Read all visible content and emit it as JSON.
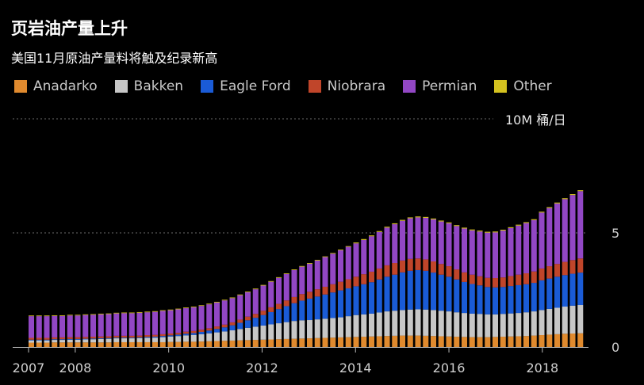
{
  "chart_data": {
    "type": "bar",
    "stacked": true,
    "title": "页岩油产量上升",
    "subtitle": "美国11月原油产量料将触及纪录新高",
    "unit_label": "10M  桶/日",
    "y_ticks": [
      {
        "value": 0,
        "label": "0"
      },
      {
        "value": 5,
        "label": "5"
      }
    ],
    "x_ticks": [
      {
        "value": 2007.0,
        "label": "2007"
      },
      {
        "value": 2008.0,
        "label": "2008"
      },
      {
        "value": 2010.0,
        "label": "2010"
      },
      {
        "value": 2012.0,
        "label": "2012"
      },
      {
        "value": 2014.0,
        "label": "2014"
      },
      {
        "value": 2016.0,
        "label": "2016"
      },
      {
        "value": 2018.0,
        "label": "2018"
      }
    ],
    "ylim": [
      0,
      10
    ],
    "xlim": [
      2007.0,
      2018.92
    ],
    "categories": [
      "2007-01",
      "2007-03",
      "2007-05",
      "2007-07",
      "2007-09",
      "2007-11",
      "2008-01",
      "2008-03",
      "2008-05",
      "2008-07",
      "2008-09",
      "2008-11",
      "2009-01",
      "2009-03",
      "2009-05",
      "2009-07",
      "2009-09",
      "2009-11",
      "2010-01",
      "2010-03",
      "2010-05",
      "2010-07",
      "2010-09",
      "2010-11",
      "2011-01",
      "2011-03",
      "2011-05",
      "2011-07",
      "2011-09",
      "2011-11",
      "2012-01",
      "2012-03",
      "2012-05",
      "2012-07",
      "2012-09",
      "2012-11",
      "2013-01",
      "2013-03",
      "2013-05",
      "2013-07",
      "2013-09",
      "2013-11",
      "2014-01",
      "2014-03",
      "2014-05",
      "2014-07",
      "2014-09",
      "2014-11",
      "2015-01",
      "2015-03",
      "2015-05",
      "2015-07",
      "2015-09",
      "2015-11",
      "2016-01",
      "2016-03",
      "2016-05",
      "2016-07",
      "2016-09",
      "2016-11",
      "2017-01",
      "2017-03",
      "2017-05",
      "2017-07",
      "2017-09",
      "2017-11",
      "2018-01",
      "2018-03",
      "2018-05",
      "2018-07",
      "2018-09",
      "2018-11"
    ],
    "series": [
      {
        "name": "Anadarko",
        "color": "#e08a2e",
        "values": [
          0.19,
          0.19,
          0.19,
          0.2,
          0.2,
          0.2,
          0.2,
          0.2,
          0.2,
          0.2,
          0.2,
          0.21,
          0.21,
          0.21,
          0.21,
          0.21,
          0.21,
          0.21,
          0.22,
          0.22,
          0.23,
          0.23,
          0.24,
          0.25,
          0.26,
          0.27,
          0.28,
          0.29,
          0.3,
          0.31,
          0.32,
          0.33,
          0.34,
          0.35,
          0.36,
          0.37,
          0.38,
          0.39,
          0.4,
          0.41,
          0.42,
          0.43,
          0.44,
          0.45,
          0.46,
          0.47,
          0.48,
          0.49,
          0.5,
          0.5,
          0.5,
          0.49,
          0.48,
          0.47,
          0.46,
          0.45,
          0.44,
          0.43,
          0.43,
          0.43,
          0.44,
          0.45,
          0.46,
          0.47,
          0.48,
          0.5,
          0.52,
          0.54,
          0.56,
          0.58,
          0.59,
          0.6
        ]
      },
      {
        "name": "Bakken",
        "color": "#c7c7c7",
        "values": [
          0.1,
          0.1,
          0.1,
          0.11,
          0.11,
          0.12,
          0.12,
          0.13,
          0.14,
          0.15,
          0.16,
          0.17,
          0.17,
          0.17,
          0.18,
          0.19,
          0.2,
          0.22,
          0.24,
          0.26,
          0.28,
          0.3,
          0.32,
          0.35,
          0.38,
          0.41,
          0.45,
          0.5,
          0.54,
          0.58,
          0.62,
          0.66,
          0.7,
          0.74,
          0.78,
          0.8,
          0.8,
          0.82,
          0.84,
          0.86,
          0.88,
          0.92,
          0.96,
          0.98,
          1.0,
          1.04,
          1.08,
          1.1,
          1.12,
          1.14,
          1.15,
          1.15,
          1.14,
          1.12,
          1.1,
          1.07,
          1.05,
          1.03,
          1.02,
          1.0,
          0.99,
          1.0,
          1.01,
          1.02,
          1.04,
          1.06,
          1.1,
          1.13,
          1.16,
          1.19,
          1.22,
          1.24
        ]
      },
      {
        "name": "Eagle Ford",
        "color": "#1a5bd6",
        "values": [
          0.03,
          0.03,
          0.03,
          0.03,
          0.03,
          0.03,
          0.03,
          0.03,
          0.03,
          0.03,
          0.03,
          0.03,
          0.03,
          0.03,
          0.03,
          0.04,
          0.04,
          0.05,
          0.05,
          0.06,
          0.07,
          0.08,
          0.1,
          0.12,
          0.15,
          0.18,
          0.22,
          0.27,
          0.33,
          0.39,
          0.46,
          0.54,
          0.62,
          0.7,
          0.78,
          0.86,
          0.94,
          1.0,
          1.06,
          1.12,
          1.18,
          1.22,
          1.26,
          1.32,
          1.38,
          1.45,
          1.52,
          1.58,
          1.65,
          1.7,
          1.72,
          1.7,
          1.64,
          1.58,
          1.52,
          1.44,
          1.36,
          1.3,
          1.25,
          1.2,
          1.18,
          1.18,
          1.2,
          1.22,
          1.23,
          1.25,
          1.3,
          1.33,
          1.36,
          1.38,
          1.4,
          1.42
        ]
      },
      {
        "name": "Niobrara",
        "color": "#c0452a",
        "values": [
          0.08,
          0.08,
          0.08,
          0.08,
          0.08,
          0.08,
          0.08,
          0.08,
          0.08,
          0.08,
          0.08,
          0.08,
          0.08,
          0.08,
          0.08,
          0.08,
          0.08,
          0.08,
          0.08,
          0.08,
          0.09,
          0.09,
          0.1,
          0.1,
          0.11,
          0.12,
          0.13,
          0.14,
          0.16,
          0.17,
          0.19,
          0.21,
          0.23,
          0.25,
          0.27,
          0.29,
          0.3,
          0.32,
          0.34,
          0.36,
          0.38,
          0.4,
          0.42,
          0.44,
          0.46,
          0.48,
          0.5,
          0.51,
          0.52,
          0.52,
          0.51,
          0.5,
          0.49,
          0.47,
          0.46,
          0.44,
          0.42,
          0.41,
          0.4,
          0.4,
          0.41,
          0.42,
          0.44,
          0.46,
          0.48,
          0.5,
          0.52,
          0.54,
          0.56,
          0.58,
          0.6,
          0.62
        ]
      },
      {
        "name": "Permian",
        "color": "#9247c4",
        "values": [
          0.95,
          0.95,
          0.95,
          0.94,
          0.94,
          0.95,
          0.95,
          0.96,
          0.96,
          0.97,
          0.97,
          0.98,
          0.99,
          0.99,
          1.0,
          1.0,
          1.01,
          1.02,
          1.02,
          1.03,
          1.03,
          1.04,
          1.04,
          1.05,
          1.05,
          1.06,
          1.06,
          1.07,
          1.07,
          1.08,
          1.1,
          1.12,
          1.14,
          1.16,
          1.18,
          1.2,
          1.23,
          1.26,
          1.3,
          1.34,
          1.38,
          1.42,
          1.46,
          1.5,
          1.55,
          1.6,
          1.65,
          1.7,
          1.74,
          1.78,
          1.8,
          1.82,
          1.84,
          1.86,
          1.88,
          1.9,
          1.92,
          1.94,
          1.96,
          1.98,
          2.0,
          2.05,
          2.1,
          2.15,
          2.2,
          2.25,
          2.45,
          2.55,
          2.65,
          2.75,
          2.85,
          2.95
        ]
      },
      {
        "name": "Other",
        "color": "#d4c21f",
        "values": [
          0.03,
          0.03,
          0.03,
          0.03,
          0.03,
          0.03,
          0.03,
          0.03,
          0.03,
          0.03,
          0.03,
          0.03,
          0.03,
          0.03,
          0.03,
          0.03,
          0.03,
          0.03,
          0.03,
          0.03,
          0.03,
          0.03,
          0.03,
          0.03,
          0.03,
          0.03,
          0.03,
          0.03,
          0.03,
          0.03,
          0.03,
          0.03,
          0.03,
          0.03,
          0.03,
          0.03,
          0.03,
          0.03,
          0.03,
          0.03,
          0.03,
          0.03,
          0.04,
          0.04,
          0.04,
          0.04,
          0.04,
          0.04,
          0.04,
          0.04,
          0.04,
          0.04,
          0.04,
          0.04,
          0.04,
          0.04,
          0.04,
          0.04,
          0.04,
          0.04,
          0.04,
          0.04,
          0.04,
          0.04,
          0.04,
          0.04,
          0.04,
          0.04,
          0.04,
          0.04,
          0.04,
          0.04
        ]
      }
    ]
  }
}
